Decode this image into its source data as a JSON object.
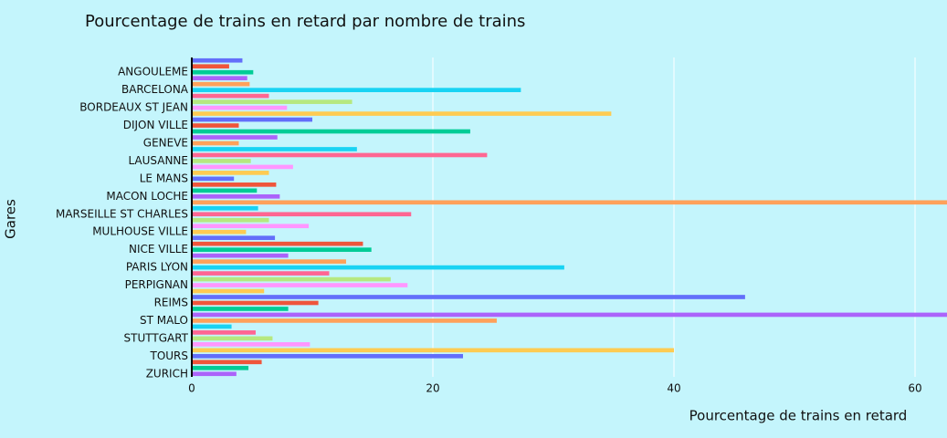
{
  "chart_data": {
    "type": "barh",
    "title": "Pourcentage de trains en retard par nombre de trains",
    "x_label": "Pourcentage de trains en retard",
    "y_label": "Gares",
    "categories": [
      null,
      null,
      "ANGOULEME",
      null,
      null,
      "BARCELONA",
      null,
      null,
      "BORDEAUX ST JEAN",
      null,
      null,
      "DIJON VILLE",
      null,
      null,
      "GENEVE",
      null,
      null,
      "LAUSANNE",
      null,
      null,
      "LE MANS",
      null,
      null,
      "MACON LOCHE",
      null,
      null,
      "MARSEILLE ST CHARLES",
      null,
      null,
      "MULHOUSE VILLE",
      null,
      null,
      "NICE VILLE",
      null,
      null,
      "PARIS LYON",
      null,
      null,
      "PERPIGNAN",
      null,
      null,
      "REIMS",
      null,
      null,
      "ST MALO",
      null,
      null,
      "STUTTGART",
      null,
      null,
      "TOURS",
      null,
      null,
      "ZURICH"
    ],
    "values": [
      4.2,
      3.1,
      5.1,
      4.6,
      4.8,
      27.3,
      6.4,
      13.3,
      7.9,
      34.8,
      10.0,
      3.9,
      23.1,
      7.1,
      3.9,
      13.7,
      24.5,
      4.9,
      8.4,
      6.4,
      3.5,
      7.0,
      5.4,
      7.3,
      70,
      5.5,
      18.2,
      6.4,
      9.7,
      4.5,
      6.9,
      14.2,
      14.9,
      8.0,
      12.8,
      30.9,
      11.4,
      16.5,
      17.9,
      6.0,
      45.9,
      10.5,
      8.0,
      70,
      25.3,
      3.3,
      5.3,
      6.7,
      9.8,
      40.0,
      22.5,
      5.8,
      4.7,
      3.7
    ],
    "colors": [
      "#636efa",
      "#ef553b",
      "#00cc96",
      "#ab63fa",
      "#ffa15a",
      "#19d3f3",
      "#ff6692",
      "#b6e880",
      "#ff97ff",
      "#fecb52"
    ],
    "xlim": [
      0,
      62.65
    ],
    "xticks": [
      0,
      20,
      40,
      60
    ],
    "grid": true
  }
}
